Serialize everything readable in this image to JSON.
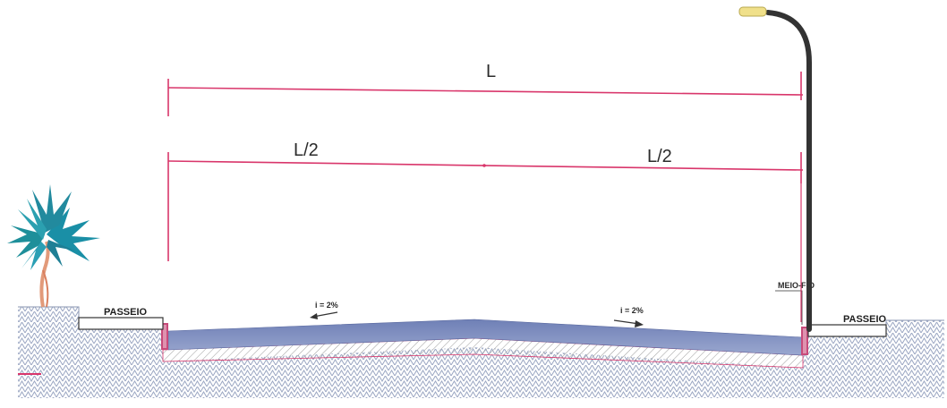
{
  "dimensions": {
    "total": "L",
    "half_left": "L/2",
    "half_right": "L/2"
  },
  "slopes": {
    "left": "i = 2%",
    "right": "i = 2%"
  },
  "labels": {
    "sidewalk_left": "PASSEIO",
    "sidewalk_right": "PASSEIO",
    "curb": "MEIO-FIO"
  },
  "colors": {
    "dimension_line": "#d9366b",
    "pavement": "#7f8fbf",
    "soil_hatch": "#9aa6c2",
    "pole": "#333333",
    "lamp": "#f0e08a"
  },
  "icons": {
    "tree": "palm-tree-icon",
    "streetlight": "street-light-icon"
  }
}
